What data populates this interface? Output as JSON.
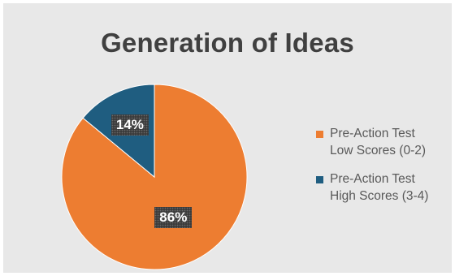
{
  "chart_data": {
    "type": "pie",
    "title": "Generation of Ideas",
    "slices": [
      {
        "label": "Pre-Action Test\nLow Scores (0-2)",
        "value": 86,
        "display": "86%",
        "color": "#ed7d31"
      },
      {
        "label": "Pre-Action Test\nHigh Scores (3-4)",
        "value": 14,
        "display": "14%",
        "color": "#1f5d80"
      }
    ],
    "legend_position": "right",
    "start_angle_deg": 0,
    "direction": "clockwise"
  }
}
